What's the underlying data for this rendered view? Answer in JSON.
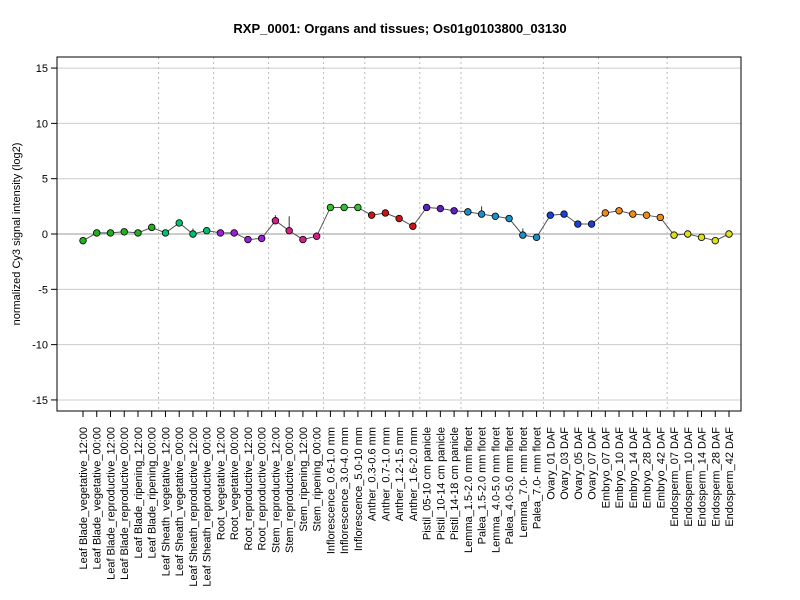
{
  "chart_data": {
    "type": "line",
    "title": "RXP_0001: Organs and tissues; Os01g0103800_03130",
    "xlabel": "",
    "ylabel": "normalized Cy3 signal intensity (log2)",
    "ylim": [
      -16,
      16
    ],
    "yticks": [
      -15,
      -10,
      -5,
      0,
      5,
      10,
      15
    ],
    "grid": true,
    "legend": "none",
    "line_color": "#555555",
    "hline_color": "#999999",
    "group_separator_color": "#bbbbbb",
    "categories": [
      "Leaf Blade_vegetative_12:00",
      "Leaf Blade_vegetative_00:00",
      "Leaf Blade_reproductive_12:00",
      "Leaf Blade_reproductive_00:00",
      "Leaf Blade_ripening_12:00",
      "Leaf Blade_ripening_00:00",
      "Leaf Sheath_vegetative_12:00",
      "Leaf Sheath_vegetative_00:00",
      "Leaf Sheath_reproductive_12:00",
      "Leaf Sheath_reproductive_00:00",
      "Root_vegetative_12:00",
      "Root_vegetative_00:00",
      "Root_reproductive_12:00",
      "Root_reproductive_00:00",
      "Stem_reproductive_12:00",
      "Stem_reproductive_00:00",
      "Stem_ripening_12:00",
      "Stem_ripening_00:00",
      "Inflorescence_0.6-1.0 mm",
      "Inflorescence_3.0-4.0 mm",
      "Inflorescence_5.0-10 mm",
      "Anther_0.3-0.6 mm",
      "Anther_0.7-1.0 mm",
      "Anther_1.2-1.5 mm",
      "Anther_1.6-2.0 mm",
      "Pistil_05-10 cm panicle",
      "Pistil_10-14 cm panicle",
      "Pistil_14-18 cm panicle",
      "Lemma_1.5-2.0 mm floret",
      "Palea_1.5-2.0 mm floret",
      "Lemma_4.0-5.0 mm floret",
      "Palea_4.0-5.0 mm floret",
      "Lemma_7.0- mm floret",
      "Palea_7.0- mm floret",
      "Ovary_01 DAF",
      "Ovary_03 DAF",
      "Ovary_05 DAF",
      "Ovary_07 DAF",
      "Embryo_07 DAF",
      "Embryo_10 DAF",
      "Embryo_14 DAF",
      "Embryo_28 DAF",
      "Embryo_42 DAF",
      "Endosperm_07 DAF",
      "Endosperm_10 DAF",
      "Endosperm_14 DAF",
      "Endosperm_28 DAF",
      "Endosperm_42 DAF"
    ],
    "values": [
      -0.6,
      0.1,
      0.1,
      0.2,
      0.1,
      0.6,
      0.1,
      1.0,
      0.0,
      0.3,
      0.1,
      0.1,
      -0.5,
      -0.4,
      1.2,
      0.3,
      -0.5,
      -0.2,
      2.4,
      2.4,
      2.4,
      1.7,
      1.9,
      1.4,
      0.7,
      2.4,
      2.3,
      2.1,
      2.0,
      1.8,
      1.6,
      1.4,
      -0.1,
      -0.3,
      1.7,
      1.8,
      0.9,
      0.9,
      1.9,
      2.1,
      1.8,
      1.7,
      1.5,
      -0.1,
      0.0,
      -0.3,
      -0.6,
      0.0
    ],
    "error_bars": [
      {
        "index": 8,
        "low": -0.1,
        "high": 0.5
      },
      {
        "index": 14,
        "low": 0.9,
        "high": 1.7
      },
      {
        "index": 15,
        "low": 0.1,
        "high": 1.6
      },
      {
        "index": 26,
        "low": 2.1,
        "high": 2.4
      },
      {
        "index": 29,
        "low": 1.5,
        "high": 2.5
      },
      {
        "index": 32,
        "low": -0.4,
        "high": 0.5
      }
    ],
    "point_colors": [
      "#22b022",
      "#22b022",
      "#22b022",
      "#22b022",
      "#22b022",
      "#22b022",
      "#00c070",
      "#00c070",
      "#00c070",
      "#00c070",
      "#9a1fd6",
      "#9a1fd6",
      "#9a1fd6",
      "#9a1fd6",
      "#d41f8a",
      "#d41f8a",
      "#d41f8a",
      "#d41f8a",
      "#2ec42e",
      "#2ec42e",
      "#2ec42e",
      "#cc1414",
      "#cc1414",
      "#cc1414",
      "#cc1414",
      "#6020c0",
      "#6020c0",
      "#6020c0",
      "#1a90c8",
      "#1a90c8",
      "#1a90c8",
      "#1a90c8",
      "#1a90c8",
      "#1a90c8",
      "#1a3fd8",
      "#1a3fd8",
      "#1a3fd8",
      "#1a3fd8",
      "#f08a1a",
      "#f08a1a",
      "#f08a1a",
      "#f08a1a",
      "#f08a1a",
      "#dede1a",
      "#dede1a",
      "#dede1a",
      "#dede1a",
      "#dede1a"
    ],
    "group_boundaries": [
      6,
      10,
      14,
      18,
      21,
      25,
      28,
      34,
      38,
      43
    ]
  }
}
